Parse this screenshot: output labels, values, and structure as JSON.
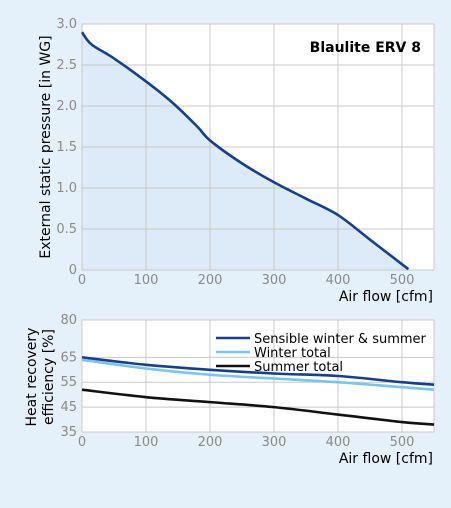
{
  "colors": {
    "page_bg": "#e4f1fb",
    "plot_bg": "#ffffff",
    "grid": "#c8c8c8",
    "tick_text": "#8a8a8a",
    "axis_text": "#000000",
    "curve": "#163f8c",
    "curve_fill": "#dcebf7",
    "series_winter": "#7cc3f0",
    "series_summer": "#111111"
  },
  "chart_data": [
    {
      "type": "area",
      "title": "Blaulite ERV 8",
      "xlabel": "Air flow [cfm]",
      "ylabel": "External static pressure [in WG]",
      "xlim": [
        0,
        550
      ],
      "ylim": [
        0,
        3.0
      ],
      "x_ticks": [
        0,
        100,
        200,
        300,
        400,
        500
      ],
      "x_tick_labels": [
        "0",
        "100",
        "200",
        "300",
        "400",
        "500"
      ],
      "y_ticks": [
        0,
        0.5,
        1.0,
        1.5,
        2.0,
        2.5,
        3.0
      ],
      "y_tick_labels": [
        "0",
        "0.5",
        "1.0",
        "1.5",
        "2.0",
        "2.5",
        "3.0"
      ],
      "grid": true,
      "series": [
        {
          "x": [
            0,
            15,
            50,
            100,
            140,
            180,
            200,
            250,
            300,
            350,
            400,
            450,
            510
          ],
          "y": [
            2.9,
            2.75,
            2.58,
            2.3,
            2.05,
            1.75,
            1.58,
            1.3,
            1.07,
            0.87,
            0.67,
            0.37,
            0.01
          ]
        }
      ]
    },
    {
      "type": "line",
      "title": "",
      "xlabel": "Air flow [cfm]",
      "ylabel": "Heat recovery efficiency [%]",
      "ylabel_lines": [
        "Heat recovery",
        "efficiency [%]"
      ],
      "xlim": [
        0,
        550
      ],
      "ylim": [
        35,
        80
      ],
      "x_ticks": [
        0,
        100,
        200,
        300,
        400,
        500
      ],
      "x_tick_labels": [
        "0",
        "100",
        "200",
        "300",
        "400",
        "500"
      ],
      "y_ticks": [
        35,
        45,
        55,
        65,
        80
      ],
      "y_tick_labels": [
        "35",
        "45",
        "55",
        "65",
        "80"
      ],
      "grid": true,
      "legend_position": "top-right",
      "series": [
        {
          "name": "Sensible winter & summer",
          "x": [
            0,
            100,
            200,
            300,
            400,
            500,
            550
          ],
          "y": [
            65,
            62,
            60,
            58.5,
            57.5,
            55,
            54
          ]
        },
        {
          "name": "Winter total",
          "x": [
            0,
            100,
            200,
            300,
            400,
            500,
            550
          ],
          "y": [
            64,
            60.5,
            58,
            56.5,
            55,
            53,
            52
          ]
        },
        {
          "name": "Summer total",
          "x": [
            0,
            100,
            200,
            300,
            400,
            500,
            550
          ],
          "y": [
            52,
            49,
            47,
            45,
            42,
            39,
            38
          ]
        }
      ]
    }
  ]
}
